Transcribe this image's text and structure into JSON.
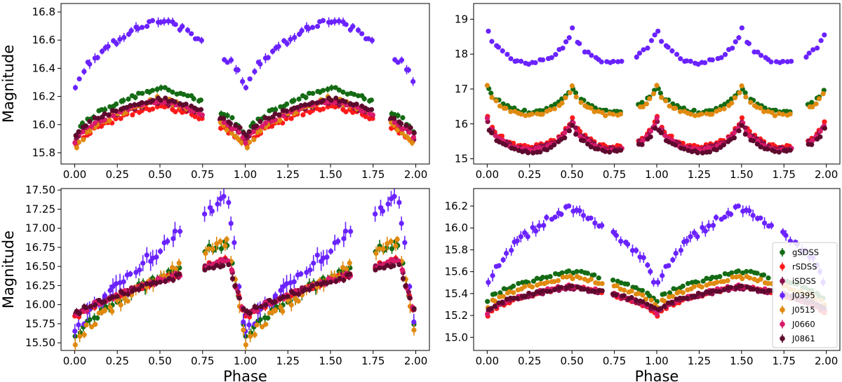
{
  "colors": {
    "gSDSS": "#146b14",
    "rSDSS": "#ff1a1a",
    "iSDSS": "#8a0f4a",
    "J0395": "#6a22ff",
    "J0515": "#e08a10",
    "J0660": "#d91a6b",
    "J0861": "#5e0a2e"
  },
  "legend": [
    "gSDSS",
    "rSDSS",
    "iSDSS",
    "J0395",
    "J0515",
    "J0660",
    "J0861"
  ],
  "chart_data": [
    {
      "type": "scatter",
      "panel": "top-left",
      "xlabel": "",
      "ylabel": "Magnitude",
      "xlim": [
        -0.08,
        2.08
      ],
      "ylim": [
        16.86,
        15.72
      ],
      "xticks": [
        "0.00",
        "0.25",
        "0.50",
        "0.75",
        "1.00",
        "1.25",
        "1.50",
        "1.75",
        "2.00"
      ],
      "yticks": [
        "15.8",
        "16.0",
        "16.2",
        "16.4",
        "16.6",
        "16.8"
      ],
      "curve": "dip",
      "minimum_phases": [
        0.0
      ],
      "phase_coverage": [
        [
          0.0,
          0.75
        ],
        [
          0.85,
          1.0
        ]
      ],
      "series": [
        {
          "name": "gSDSS",
          "base": 15.88,
          "amp": 0.38
        },
        {
          "name": "rSDSS",
          "base": 15.8,
          "amp": 0.33
        },
        {
          "name": "iSDSS",
          "base": 15.86,
          "amp": 0.3
        },
        {
          "name": "J0395",
          "base": 16.22,
          "amp": 0.52
        },
        {
          "name": "J0515",
          "base": 15.78,
          "amp": 0.4
        },
        {
          "name": "J0660",
          "base": 15.85,
          "amp": 0.32
        },
        {
          "name": "J0861",
          "base": 15.9,
          "amp": 0.28
        }
      ]
    },
    {
      "type": "scatter",
      "panel": "top-right",
      "xlabel": "",
      "ylabel": "",
      "xlim": [
        -0.08,
        2.08
      ],
      "ylim": [
        19.45,
        14.85
      ],
      "xticks": [
        "0.00",
        "0.25",
        "0.50",
        "0.75",
        "1.00",
        "1.25",
        "1.50",
        "1.75",
        "2.00"
      ],
      "yticks": [
        "15",
        "16",
        "17",
        "18",
        "19"
      ],
      "curve": "arches",
      "minimum_phases": [
        0.0,
        0.5
      ],
      "phase_coverage": [
        [
          0.0,
          0.8
        ],
        [
          0.88,
          1.0
        ]
      ],
      "series": [
        {
          "name": "gSDSS",
          "base": 16.35,
          "amp": 0.85
        },
        {
          "name": "rSDSS",
          "base": 15.35,
          "amp": 0.95
        },
        {
          "name": "iSDSS",
          "base": 15.3,
          "amp": 0.9
        },
        {
          "name": "J0395",
          "base": 17.75,
          "amp": 1.1
        },
        {
          "name": "J0515",
          "base": 16.25,
          "amp": 0.9
        },
        {
          "name": "J0660",
          "base": 15.25,
          "amp": 0.95
        },
        {
          "name": "J0861",
          "base": 15.2,
          "amp": 0.85
        }
      ]
    },
    {
      "type": "scatter",
      "panel": "bottom-left",
      "xlabel": "Phase",
      "ylabel": "Magnitude",
      "xlim": [
        -0.08,
        2.08
      ],
      "ylim": [
        17.52,
        15.4
      ],
      "xticks": [
        "0.00",
        "0.25",
        "0.50",
        "0.75",
        "1.00",
        "1.25",
        "1.50",
        "1.75",
        "2.00"
      ],
      "yticks": [
        "15.50",
        "15.75",
        "16.00",
        "16.25",
        "16.50",
        "16.75",
        "17.00",
        "17.25",
        "17.50"
      ],
      "curve": "sawtooth",
      "minimum_phases": [
        0.0
      ],
      "phase_coverage": [
        [
          0.0,
          0.62
        ],
        [
          0.76,
          1.0
        ]
      ],
      "series": [
        {
          "name": "gSDSS",
          "base": 15.55,
          "amp": 1.28
        },
        {
          "name": "rSDSS",
          "base": 15.82,
          "amp": 0.78
        },
        {
          "name": "iSDSS",
          "base": 15.85,
          "amp": 0.72
        },
        {
          "name": "J0395",
          "base": 15.58,
          "amp": 1.8
        },
        {
          "name": "J0515",
          "base": 15.5,
          "amp": 1.32
        },
        {
          "name": "J0660",
          "base": 15.84,
          "amp": 0.75
        },
        {
          "name": "J0861",
          "base": 15.86,
          "amp": 0.68
        }
      ]
    },
    {
      "type": "scatter",
      "panel": "bottom-right",
      "xlabel": "Phase",
      "ylabel": "",
      "xlim": [
        -0.08,
        2.08
      ],
      "ylim": [
        16.36,
        14.88
      ],
      "xticks": [
        "0.00",
        "0.25",
        "0.50",
        "0.75",
        "1.00",
        "1.25",
        "1.50",
        "1.75",
        "2.00"
      ],
      "yticks": [
        "15.0",
        "15.2",
        "15.4",
        "15.6",
        "15.8",
        "16.0",
        "16.2"
      ],
      "curve": "dip",
      "minimum_phases": [
        0.0
      ],
      "phase_coverage": [
        [
          0.0,
          0.68
        ],
        [
          0.74,
          1.0
        ]
      ],
      "legend_position": "bottom-right",
      "series": [
        {
          "name": "gSDSS",
          "base": 15.3,
          "amp": 0.3
        },
        {
          "name": "rSDSS",
          "base": 15.18,
          "amp": 0.28
        },
        {
          "name": "iSDSS",
          "base": 15.2,
          "amp": 0.25
        },
        {
          "name": "J0395",
          "base": 15.38,
          "amp": 0.8
        },
        {
          "name": "J0515",
          "base": 15.25,
          "amp": 0.3
        },
        {
          "name": "J0660",
          "base": 15.2,
          "amp": 0.27
        },
        {
          "name": "J0861",
          "base": 15.22,
          "amp": 0.24
        }
      ]
    }
  ]
}
